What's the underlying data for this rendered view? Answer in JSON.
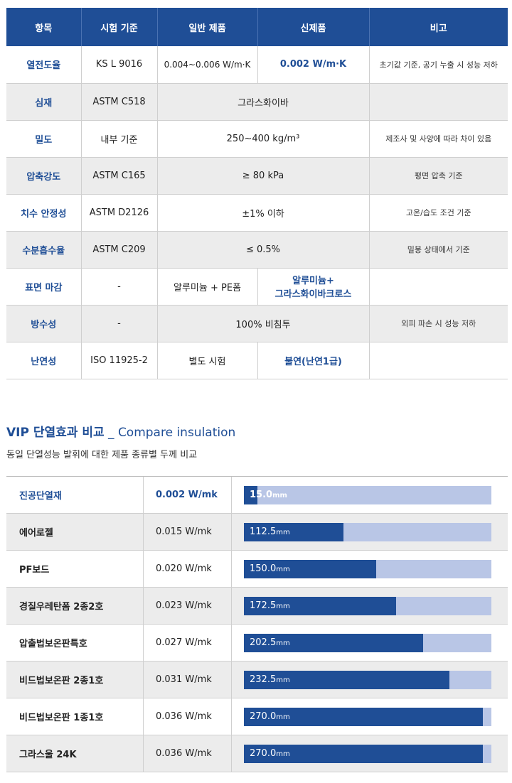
{
  "spec_table": {
    "headers": [
      "항목",
      "시험 기준",
      "일반 제품",
      "신제품",
      "비고"
    ],
    "rows": [
      {
        "item": "열전도율",
        "standard": "KS L 9016",
        "general": "0.004~0.006 W/m·K",
        "new": "0.002 W/m·K",
        "note": "초기값 기준, 공기 누출 시 성능 저하"
      },
      {
        "item": "심재",
        "standard": "ASTM C518",
        "merged": "그라스화이바",
        "note": ""
      },
      {
        "item": "밀도",
        "standard": "내부 기준",
        "merged": "250~400 kg/m³",
        "note": "제조사 및 사양에 따라 차이 있음"
      },
      {
        "item": "압축강도",
        "standard": "ASTM C165",
        "merged": "≥ 80 kPa",
        "note": "평면 압축 기준"
      },
      {
        "item": "치수 안정성",
        "standard": "ASTM D2126",
        "merged": "±1% 이하",
        "note": "고온/습도 조건 기준"
      },
      {
        "item": "수분흡수율",
        "standard": "ASTM C209",
        "merged": "≤ 0.5%",
        "note": "밀봉 상태에서 기준"
      },
      {
        "item": "표면 마감",
        "standard": "-",
        "general": "알루미늄 + PE폼",
        "new_line1": "알루미늄+",
        "new_line2": "그라스화이바크로스",
        "note": ""
      },
      {
        "item": "방수성",
        "standard": "-",
        "merged": "100% 비침투",
        "note": "외피 파손 시 성능 저하"
      },
      {
        "item": "난연성",
        "standard": "ISO 11925-2",
        "general": "별도 시험",
        "new": "불연(난연1급)",
        "note": ""
      }
    ]
  },
  "section": {
    "title_ko": "VIP 단열효과 비교",
    "title_sep": " _ ",
    "title_en": "Compare insulation",
    "subtitle": "동일 단열성능 발휘에 대한 제품 종류별 두께 비교"
  },
  "chart_data": {
    "type": "bar",
    "categories": [
      "진공단열재",
      "에어로젤",
      "PF보드",
      "경질우레탄폼 2종2호",
      "압출법보온판특호",
      "비드법보온판 2종1호",
      "비드법보온판 1종1호",
      "그라스울 24K"
    ],
    "conductivity": [
      "0.002 W/mk",
      "0.015 W/mk",
      "0.020 W/mk",
      "0.023 W/mk",
      "0.027 W/mk",
      "0.031 W/mk",
      "0.036 W/mk",
      "0.036 W/mk"
    ],
    "values": [
      15.0,
      112.5,
      150.0,
      172.5,
      202.5,
      232.5,
      270.0,
      270.0
    ],
    "value_labels": [
      "15.0",
      "112.5",
      "150.0",
      "172.5",
      "202.5",
      "232.5",
      "270.0",
      "270.0"
    ],
    "unit": "mm",
    "xlim": [
      0,
      280
    ],
    "colors": {
      "fill": "#1f4e96",
      "track": "#b9c6e6"
    }
  },
  "colors": {
    "accent": "#1f4e96",
    "header_bg": "#1f4e96",
    "row_alt": "#ececec"
  }
}
